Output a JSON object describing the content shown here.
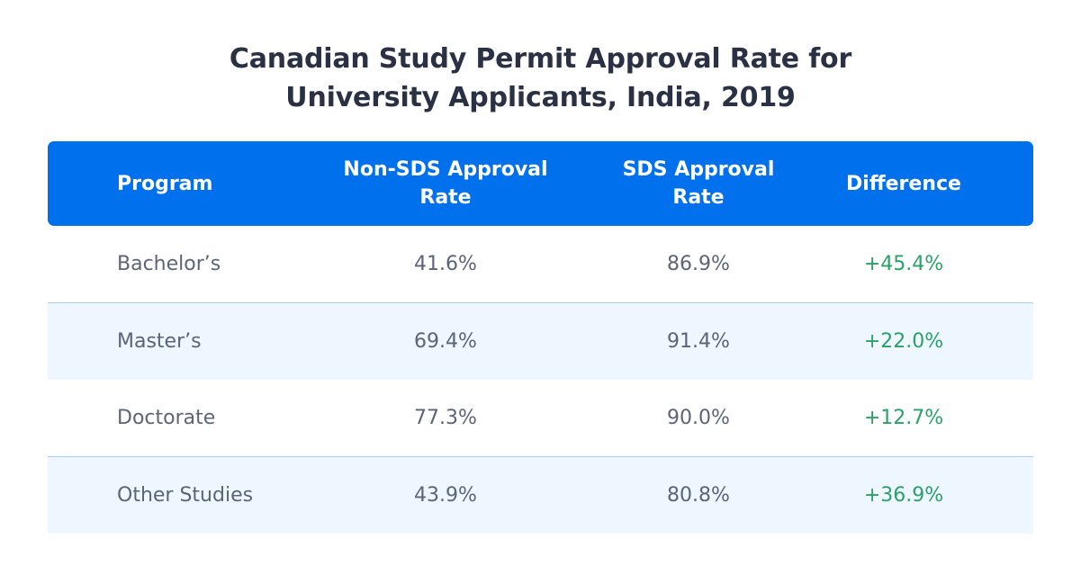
{
  "chart_data": {
    "type": "table",
    "title": "Canadian Study Permit Approval Rate for University Applicants, India, 2019",
    "title_lines": [
      "Canadian Study Permit Approval Rate for",
      "University Applicants, India, 2019"
    ],
    "columns": [
      {
        "key": "program",
        "lines": [
          "Program"
        ]
      },
      {
        "key": "non_sds",
        "lines": [
          "Non-SDS Approval",
          "Rate"
        ]
      },
      {
        "key": "sds",
        "lines": [
          "SDS Approval",
          "Rate"
        ]
      },
      {
        "key": "difference",
        "lines": [
          "Difference"
        ]
      }
    ],
    "rows": [
      {
        "program": "Bachelor’s",
        "non_sds": "41.6%",
        "sds": "86.9%",
        "difference": "+45.4%"
      },
      {
        "program": "Master’s",
        "non_sds": "69.4%",
        "sds": "91.4%",
        "difference": "+22.0%"
      },
      {
        "program": "Doctorate",
        "non_sds": "77.3%",
        "sds": "90.0%",
        "difference": "+12.7%"
      },
      {
        "program": "Other Studies",
        "non_sds": "43.9%",
        "sds": "80.8%",
        "difference": "+36.9%"
      }
    ],
    "colors": {
      "header_background": "#0070ec",
      "header_text": "#ffffff",
      "title_text": "#2b3144",
      "body_text": "#5b6478",
      "positive_difference": "#2aa167",
      "shaded_row": "#eef6ff",
      "row_divider": "#a9cdf6"
    }
  }
}
